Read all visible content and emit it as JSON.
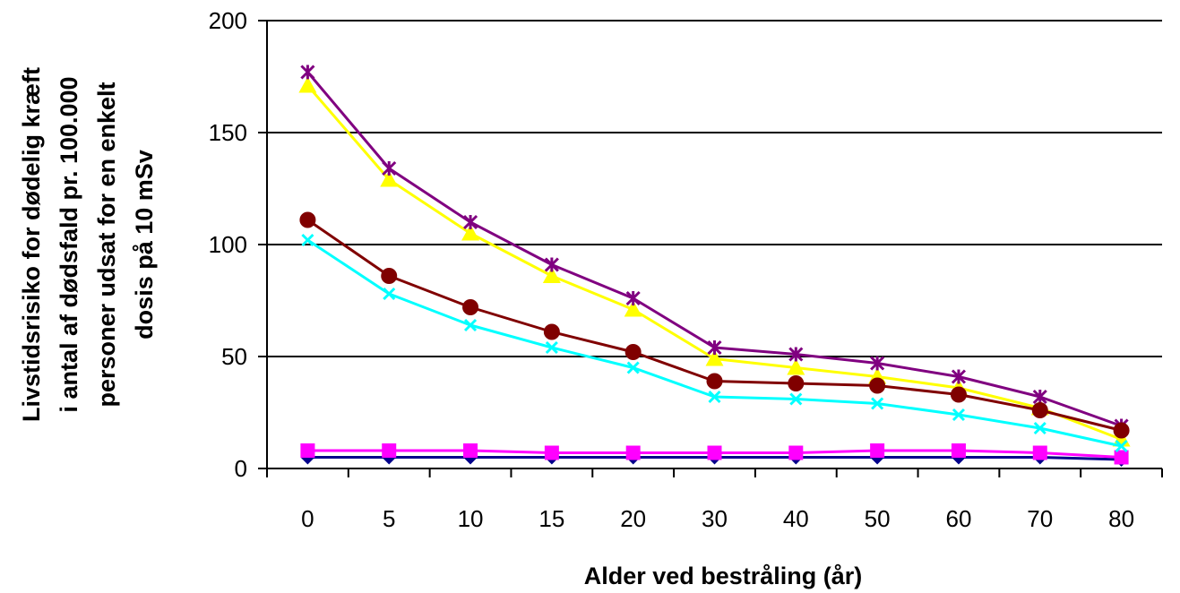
{
  "chart_data": {
    "type": "line",
    "title": "",
    "xlabel": "Alder ved bestråling (år)",
    "ylabel_lines": [
      "Livstidsrisiko for dødelig kræft",
      "i antal af dødsfald pr. 100.000",
      "personer udsat for en enkelt",
      "dosis på 10 mSv"
    ],
    "categories": [
      "0",
      "5",
      "10",
      "15",
      "20",
      "30",
      "40",
      "50",
      "60",
      "70",
      "80"
    ],
    "ylim": [
      0,
      200
    ],
    "yticks": [
      "0",
      "50",
      "100",
      "150",
      "200"
    ],
    "grid": true,
    "legend": "none",
    "series": [
      {
        "color": "#00008B",
        "marker": "diamond",
        "values": [
          5,
          5,
          5,
          5,
          5,
          5,
          5,
          5,
          5,
          5,
          4
        ]
      },
      {
        "color": "#FF00FF",
        "marker": "square",
        "values": [
          8,
          8,
          8,
          7,
          7,
          7,
          7,
          8,
          8,
          7,
          5
        ]
      },
      {
        "color": "#FFFF00",
        "marker": "triangle",
        "values": [
          171,
          129,
          105,
          86,
          71,
          49,
          45,
          41,
          36,
          27,
          13
        ]
      },
      {
        "color": "#00FFFF",
        "marker": "x",
        "values": [
          102,
          78,
          64,
          54,
          45,
          32,
          31,
          29,
          24,
          18,
          10
        ]
      },
      {
        "color": "#800080",
        "marker": "star",
        "values": [
          177,
          134,
          110,
          91,
          76,
          54,
          51,
          47,
          41,
          32,
          19
        ]
      },
      {
        "color": "#800000",
        "marker": "circle",
        "values": [
          111,
          86,
          72,
          61,
          52,
          39,
          38,
          37,
          33,
          26,
          17
        ]
      }
    ]
  }
}
